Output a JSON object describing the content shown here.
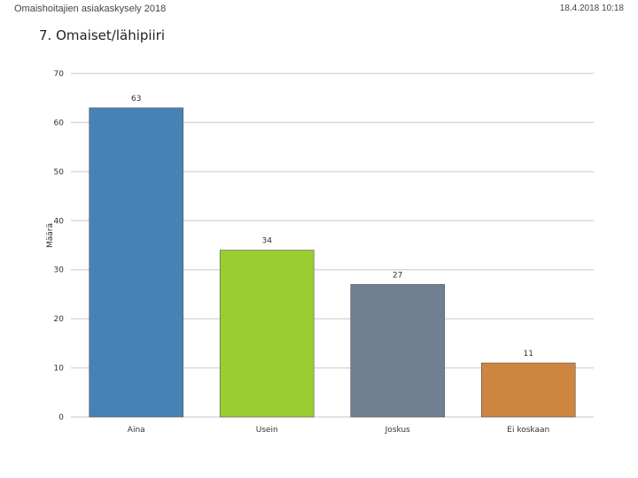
{
  "header": {
    "survey": "Omaishoitajien asiakaskysely 2018",
    "datetime": "18.4.2018 10:18"
  },
  "chart_data": {
    "type": "bar",
    "title": "7. Omaiset/lähipiiri",
    "ylabel": "Määrä",
    "xlabel": "",
    "categories": [
      "Aina",
      "Usein",
      "Joskus",
      "Ei koskaan"
    ],
    "values": [
      63,
      34,
      27,
      11
    ],
    "colors": [
      "#4682B4",
      "#9ACD32",
      "#708090",
      "#CD853F"
    ],
    "ylim": [
      0,
      70
    ],
    "yticks": [
      0,
      10,
      20,
      30,
      40,
      50,
      60,
      70
    ],
    "grid": true
  }
}
